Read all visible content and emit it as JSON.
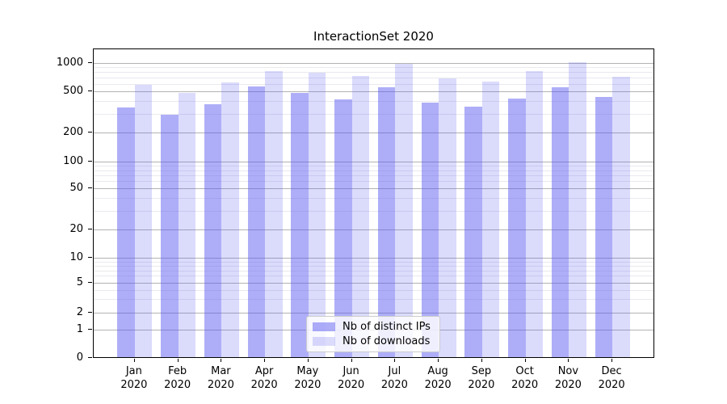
{
  "chart": {
    "title": "InteractionSet 2020"
  },
  "chart_data": {
    "type": "bar",
    "title": "InteractionSet 2020",
    "yscale": "symlog",
    "grid": "on",
    "legend_position": "lower center",
    "y_ticks": [
      0,
      1,
      2,
      5,
      10,
      20,
      50,
      100,
      200,
      500,
      1000
    ],
    "ylim": [
      0,
      1436
    ],
    "categories": [
      "Jan",
      "Feb",
      "Mar",
      "Apr",
      "May",
      "Jun",
      "Jul",
      "Aug",
      "Sep",
      "Oct",
      "Nov",
      "Dec"
    ],
    "year_label": "2020",
    "series": [
      {
        "name": "Nb of distinct IPs",
        "color": "rgba(83,83,240,0.47)",
        "values": [
          345,
          290,
          370,
          550,
          470,
          410,
          545,
          385,
          350,
          415,
          545,
          430
        ]
      },
      {
        "name": "Nb of downloads",
        "color": "rgba(83,83,240,0.21)",
        "values": [
          575,
          470,
          605,
          795,
          770,
          705,
          960,
          670,
          615,
          795,
          1000,
          700
        ]
      }
    ]
  },
  "colors": {
    "bar_base": "#5353f0",
    "grid_major": "#b3b3b3",
    "grid_minor": "#e9e9ef",
    "axis": "#000000",
    "legend_border": "#cccccc",
    "background": "#ffffff"
  }
}
